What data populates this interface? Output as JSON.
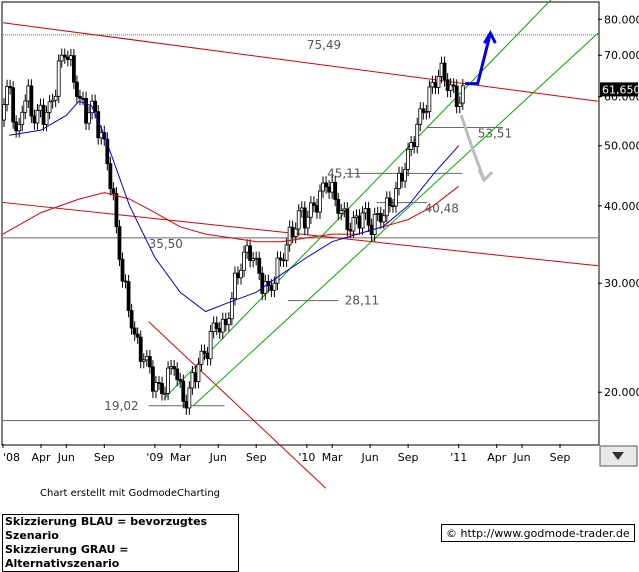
{
  "chart_data": {
    "type": "candlestick",
    "y_scale": "log",
    "ylim": [
      16.5,
      85
    ],
    "y_tick_labels": [
      "20.000",
      "30.000",
      "40.000",
      "50.000",
      "60.000",
      "70.000",
      "80.000"
    ],
    "y_tick_values": [
      20,
      30,
      40,
      50,
      60,
      70,
      80
    ],
    "x_tick_labels": [
      "'08",
      "Apr",
      "Jun",
      "Sep",
      "'09",
      "Mar",
      "Jun",
      "Sep",
      "'10",
      "Mar",
      "Jun",
      "Sep",
      "'11",
      "Apr",
      "Jun",
      "Sep"
    ],
    "x_tick_months": [
      0,
      3,
      5,
      8,
      12,
      14,
      17,
      20,
      24,
      26,
      29,
      32,
      36,
      39,
      41,
      44
    ],
    "x_range_months": [
      0,
      47
    ],
    "current_price_label": "61,650",
    "current_price": 61.65,
    "levels": [
      {
        "label": "75,49",
        "value": 75.49
      },
      {
        "label": "53,51",
        "value": 53.51
      },
      {
        "label": "45,11",
        "value": 45.11
      },
      {
        "label": "40,48",
        "value": 40.48
      },
      {
        "label": "35,50",
        "value": 35.5
      },
      {
        "label": "28,11",
        "value": 28.11
      },
      {
        "label": "19,02",
        "value": 19.02
      }
    ],
    "price_path": [
      [
        0,
        55
      ],
      [
        0.5,
        65
      ],
      [
        1,
        50
      ],
      [
        1.5,
        58
      ],
      [
        2,
        60
      ],
      [
        2.5,
        55
      ],
      [
        3,
        57
      ],
      [
        3.5,
        56
      ],
      [
        4,
        60
      ],
      [
        4.5,
        68
      ],
      [
        5,
        72
      ],
      [
        5.5,
        65
      ],
      [
        6,
        60
      ],
      [
        6.5,
        56
      ],
      [
        7,
        58
      ],
      [
        7.5,
        54
      ],
      [
        8,
        50
      ],
      [
        8.5,
        44
      ],
      [
        9,
        36
      ],
      [
        9.5,
        30
      ],
      [
        10,
        27
      ],
      [
        10.5,
        24
      ],
      [
        11,
        23
      ],
      [
        11.5,
        22
      ],
      [
        12,
        20.5
      ],
      [
        12.5,
        20
      ],
      [
        13,
        21
      ],
      [
        13.5,
        22.5
      ],
      [
        14,
        20
      ],
      [
        14.5,
        19.3
      ],
      [
        15,
        21
      ],
      [
        15.5,
        22.5
      ],
      [
        16,
        23
      ],
      [
        16.5,
        25
      ],
      [
        17,
        26
      ],
      [
        17.5,
        25
      ],
      [
        18,
        28
      ],
      [
        18.5,
        31
      ],
      [
        19,
        33
      ],
      [
        19.5,
        34
      ],
      [
        20,
        32
      ],
      [
        20.5,
        30
      ],
      [
        21,
        29
      ],
      [
        21.5,
        31
      ],
      [
        22,
        33
      ],
      [
        22.5,
        35
      ],
      [
        23,
        37
      ],
      [
        23.5,
        39
      ],
      [
        24,
        38
      ],
      [
        24.5,
        40
      ],
      [
        25,
        41
      ],
      [
        25.5,
        44
      ],
      [
        26,
        42
      ],
      [
        26.5,
        40
      ],
      [
        27,
        38
      ],
      [
        27.5,
        37
      ],
      [
        28,
        38
      ],
      [
        28.5,
        39
      ],
      [
        29,
        37
      ],
      [
        29.5,
        38
      ],
      [
        30,
        39
      ],
      [
        30.5,
        40
      ],
      [
        31,
        42
      ],
      [
        31.5,
        45
      ],
      [
        32,
        48
      ],
      [
        32.5,
        52
      ],
      [
        33,
        56
      ],
      [
        33.5,
        59
      ],
      [
        34,
        63
      ],
      [
        34.5,
        66
      ],
      [
        35,
        64
      ],
      [
        35.5,
        61
      ],
      [
        36,
        59
      ],
      [
        36.5,
        61.65
      ]
    ],
    "ma_blue": [
      [
        0.5,
        52
      ],
      [
        3,
        53
      ],
      [
        5,
        56
      ],
      [
        6,
        59
      ],
      [
        7,
        58
      ],
      [
        8,
        52
      ],
      [
        10,
        40
      ],
      [
        12,
        33
      ],
      [
        14,
        29
      ],
      [
        16,
        27
      ],
      [
        18,
        28
      ],
      [
        20,
        29
      ],
      [
        22,
        31
      ],
      [
        24,
        33
      ],
      [
        26,
        35
      ],
      [
        28,
        36
      ],
      [
        30,
        37
      ],
      [
        32,
        40
      ],
      [
        34,
        45
      ],
      [
        36,
        50
      ]
    ],
    "ma_red": [
      [
        0,
        36
      ],
      [
        3,
        39
      ],
      [
        6,
        41
      ],
      [
        8,
        42
      ],
      [
        10,
        41
      ],
      [
        12,
        39
      ],
      [
        14,
        37
      ],
      [
        16,
        36
      ],
      [
        18,
        35.5
      ],
      [
        20,
        35
      ],
      [
        22,
        35
      ],
      [
        24,
        35.5
      ],
      [
        26,
        36
      ],
      [
        28,
        36
      ],
      [
        30,
        37
      ],
      [
        32,
        38
      ],
      [
        34,
        40
      ],
      [
        36,
        43
      ]
    ],
    "scenario_blue": [
      [
        36.5,
        63
      ],
      [
        37.5,
        63
      ],
      [
        38.5,
        76
      ]
    ],
    "scenario_gray": [
      [
        36.2,
        56
      ],
      [
        37,
        50
      ],
      [
        38,
        44
      ]
    ]
  },
  "footer": {
    "credit": "Chart erstellt mit GodmodeCharting",
    "legend_blue": "Skizzierung BLAU = bevorzugtes Szenario",
    "legend_gray": "Skizzierung GRAU = Alternativszenario",
    "url": "http://www.godmode-trader.de",
    "copyright_symbol": "©"
  },
  "colors": {
    "frame": "#000000",
    "red_line": "#dd0000",
    "green_line": "#00aa00",
    "blue_ma": "#0000cc",
    "candle": "#000000",
    "level_line": "#666666",
    "scenario_blue": "#0000ee",
    "scenario_gray": "#bbbbbb",
    "price_box": "#000000"
  }
}
